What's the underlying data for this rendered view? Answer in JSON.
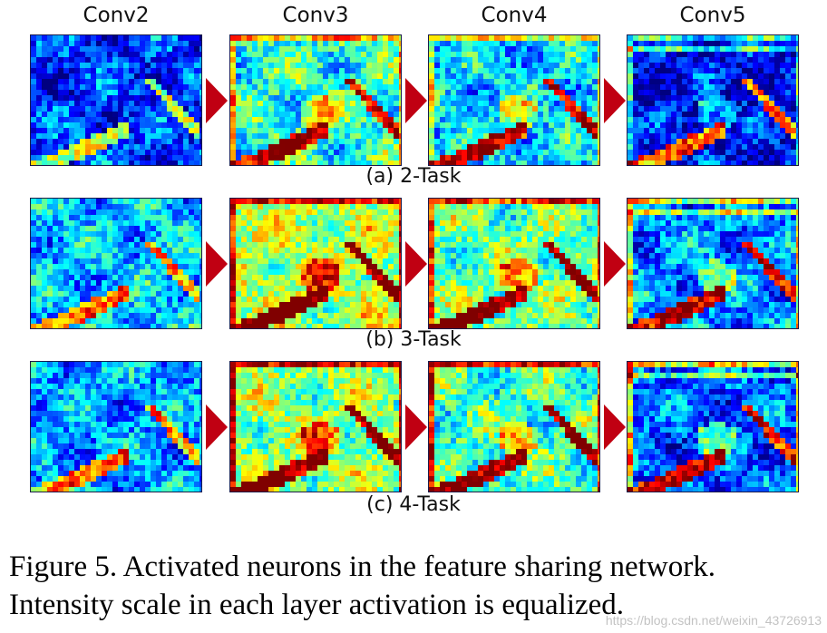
{
  "columns": [
    "Conv2",
    "Conv3",
    "Conv4",
    "Conv5"
  ],
  "rows": [
    {
      "caption": "(a) 2-Task"
    },
    {
      "caption": "(b) 3-Task"
    },
    {
      "caption": "(c) 4-Task"
    }
  ],
  "figure": {
    "caption_line1": "Figure 5. Activated neurons in the feature sharing network.",
    "caption_line2": "Intensity scale in each layer activation is equalized."
  },
  "watermark": "https://blog.csdn.net/weixin_43726913",
  "colors": {
    "arrow": "#c00012",
    "colormap_low": "#00008f",
    "colormap_high": "#8f0000"
  }
}
